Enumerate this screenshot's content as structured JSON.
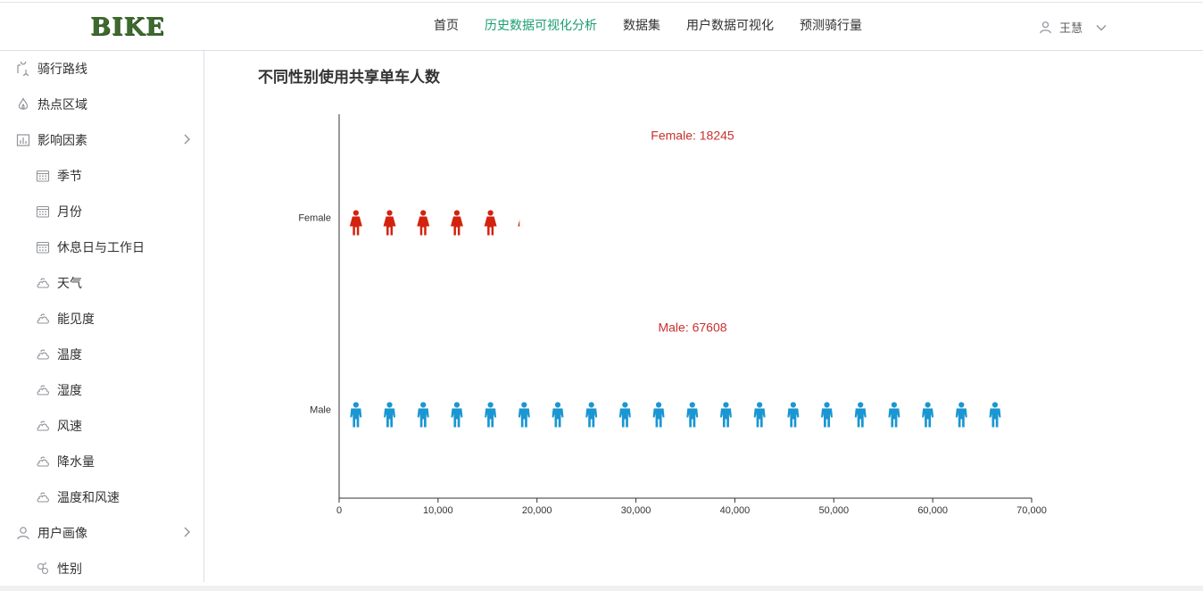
{
  "header": {
    "logo": "BIKE",
    "nav": [
      "首页",
      "历史数据可视化分析",
      "数据集",
      "用户数据可视化",
      "预测骑行量"
    ],
    "active_nav": 1,
    "user_name": "王慧"
  },
  "sidebar": {
    "items": [
      {
        "label": "骑行路线",
        "level": 1,
        "icon": "route-icon"
      },
      {
        "label": "热点区域",
        "level": 1,
        "icon": "fire-icon"
      },
      {
        "label": "影响因素",
        "level": 1,
        "icon": "chart-icon",
        "expandable": true
      },
      {
        "label": "季节",
        "level": 2,
        "icon": "calendar-icon"
      },
      {
        "label": "月份",
        "level": 2,
        "icon": "calendar-icon"
      },
      {
        "label": "休息日与工作日",
        "level": 2,
        "icon": "calendar-icon"
      },
      {
        "label": "天气",
        "level": 2,
        "icon": "cloud-icon"
      },
      {
        "label": "能见度",
        "level": 2,
        "icon": "cloud-icon"
      },
      {
        "label": "温度",
        "level": 2,
        "icon": "cloud-icon"
      },
      {
        "label": "湿度",
        "level": 2,
        "icon": "cloud-icon"
      },
      {
        "label": "风速",
        "level": 2,
        "icon": "cloud-icon"
      },
      {
        "label": "降水量",
        "level": 2,
        "icon": "cloud-icon"
      },
      {
        "label": "温度和风速",
        "level": 2,
        "icon": "cloud-icon"
      },
      {
        "label": "用户画像",
        "level": 1,
        "icon": "user-icon",
        "expandable": true
      },
      {
        "label": "性别",
        "level": 2,
        "icon": "gender-icon"
      }
    ]
  },
  "main": {
    "title": "不同性别使用共享单车人数"
  },
  "chart_data": {
    "type": "bar",
    "style": "pictorial",
    "categories": [
      "Female",
      "Male"
    ],
    "values": [
      18245,
      67608
    ],
    "data_labels": [
      "Female: 18245",
      "Male: 67608"
    ],
    "xlim": [
      0,
      70000
    ],
    "xticks": [
      "0",
      "10,000",
      "20,000",
      "30,000",
      "40,000",
      "50,000",
      "60,000",
      "70,000"
    ],
    "grid": false,
    "colors": {
      "Female": "#d4220e",
      "Male": "#1a96d2"
    },
    "label_color": "#c9302c",
    "symbol_unit": 3400
  }
}
